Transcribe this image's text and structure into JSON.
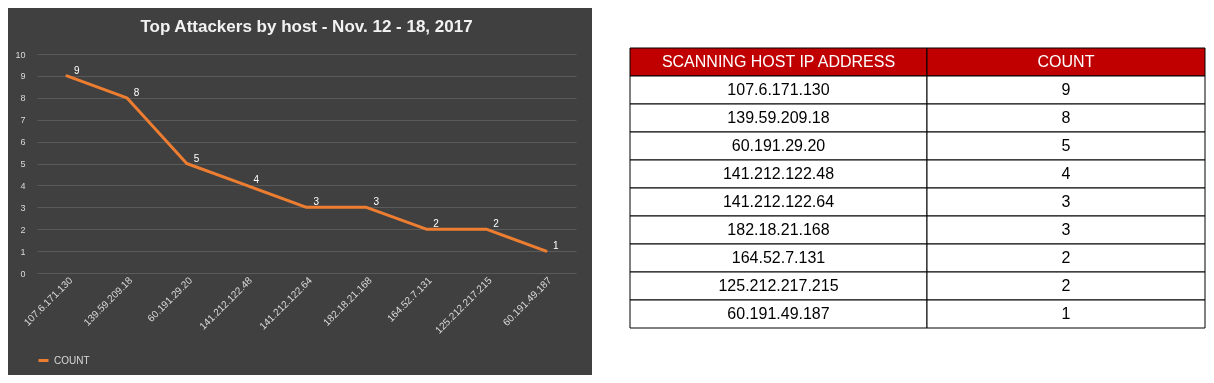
{
  "chart_data": [
    {
      "type": "line",
      "title": "Top Attackers by host - Nov. 12 - 18, 2017",
      "categories": [
        "107.6.171.130",
        "139.59.209.18",
        "60.191.29.20",
        "141.212.122.48",
        "141.212.122.64",
        "182.18.21.168",
        "164.52.7.131",
        "125.212.217.215",
        "60.191.49.187"
      ],
      "series": [
        {
          "name": "COUNT",
          "color": "#ed7d31",
          "values": [
            9,
            8,
            5,
            4,
            3,
            3,
            2,
            2,
            1
          ]
        }
      ],
      "ylim": [
        0,
        10
      ],
      "yticks": [
        0,
        1,
        2,
        3,
        4,
        5,
        6,
        7,
        8,
        9,
        10
      ],
      "grid": "y",
      "legend": "bottom",
      "data_labels": true
    },
    {
      "type": "other",
      "xlabel": "SCANNING HOST IP ADDRESS",
      "ylabel": "COUNT",
      "categories": [
        "107.6.171.130",
        "139.59.209.18",
        "60.191.29.20",
        "141.212.122.48",
        "141.212.122.64",
        "182.18.21.168",
        "164.52.7.131",
        "125.212.217.215",
        "60.191.49.187"
      ],
      "values": [
        9,
        8,
        5,
        4,
        3,
        3,
        2,
        2,
        1
      ],
      "data_labels": true
    }
  ]
}
